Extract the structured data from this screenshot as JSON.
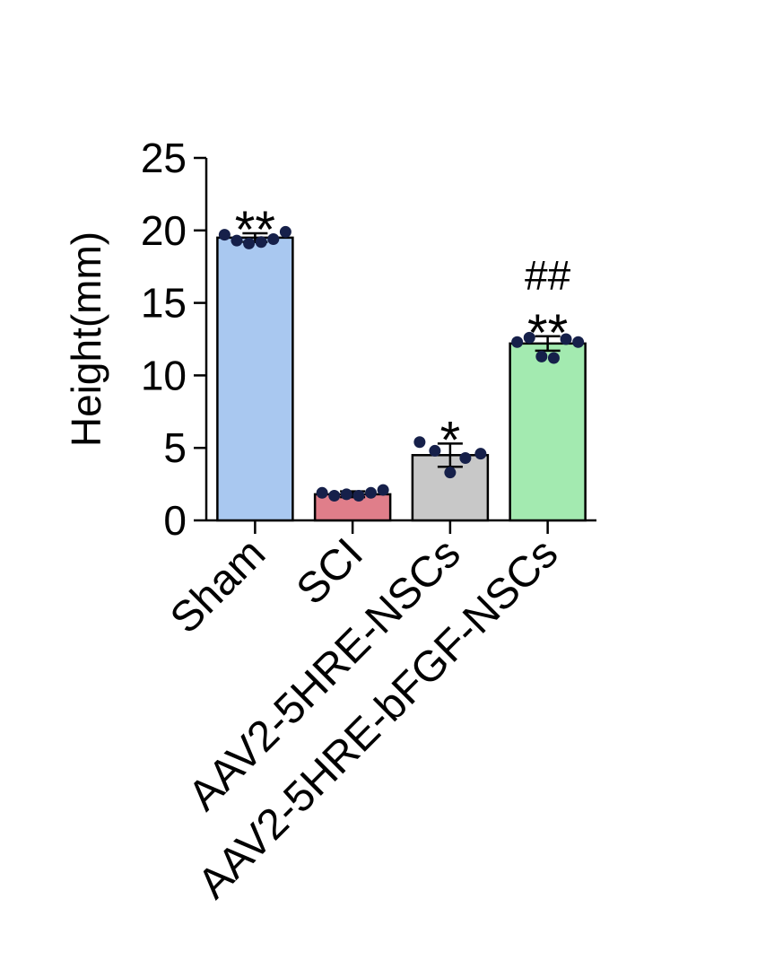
{
  "chart_data": {
    "type": "bar",
    "y_label": "Height(mm)",
    "categories": [
      "Sham",
      "SCI",
      "AAV2-5HRE-NSCs",
      "AAV2-5HRE-bFGF-NSCs"
    ],
    "values": [
      19.5,
      1.8,
      4.5,
      12.2
    ],
    "errors": [
      0.3,
      0.2,
      0.8,
      0.5
    ],
    "colors": [
      "#a9c8f0",
      "#e07e8a",
      "#c8c8c8",
      "#a3eab0"
    ],
    "points": [
      [
        19.7,
        19.3,
        19.1,
        19.2,
        19.4,
        19.9
      ],
      [
        1.9,
        1.7,
        1.8,
        1.7,
        1.9,
        2.1
      ],
      [
        5.4,
        4.8,
        3.3,
        4.3,
        4.6
      ],
      [
        12.3,
        12.6,
        11.3,
        11.2,
        12.5,
        12.3
      ]
    ],
    "point_color": "#16204a",
    "significance": [
      "**",
      null,
      "*",
      "**"
    ],
    "significance_vs_sci": [
      null,
      null,
      null,
      "##"
    ],
    "ylim": [
      0,
      25
    ],
    "yticks": [
      0,
      5,
      10,
      15,
      20,
      25
    ]
  }
}
